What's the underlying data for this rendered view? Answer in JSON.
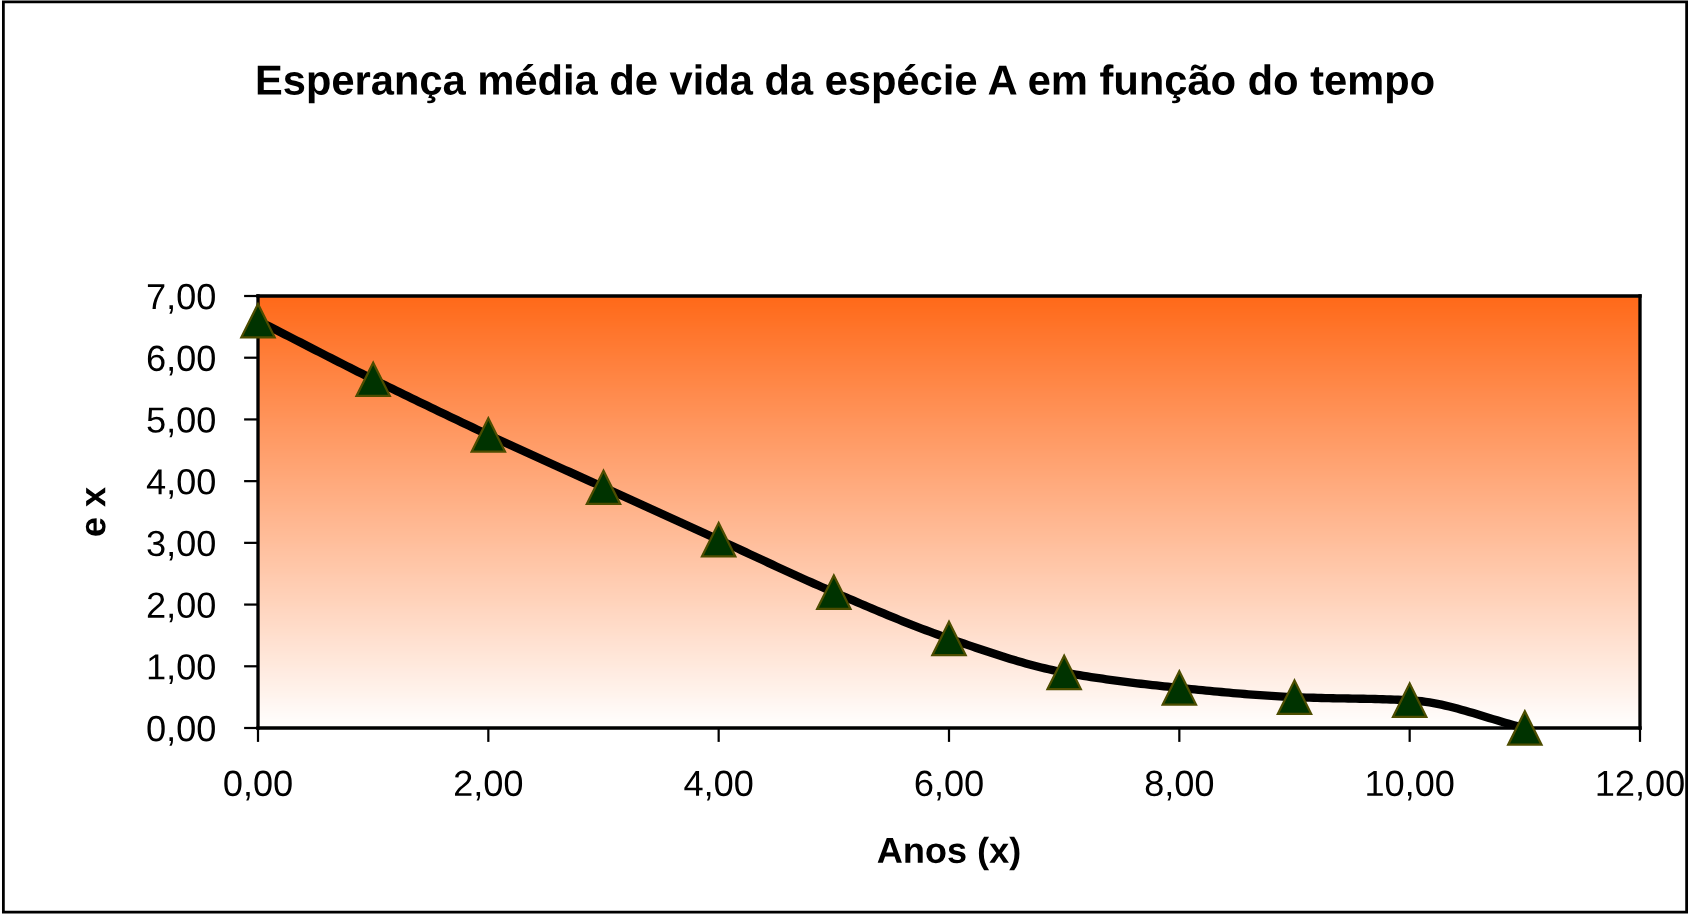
{
  "chart_data": {
    "type": "line",
    "title": "Esperança média de vida da espécie A em função do tempo",
    "xlabel": "Anos (x)",
    "ylabel": "e x",
    "series": [
      {
        "color": "#000000",
        "x": [
          0,
          1,
          2,
          3,
          4,
          5,
          6,
          7,
          8,
          9,
          10,
          11
        ],
        "values": [
          6.6,
          5.65,
          4.75,
          3.9,
          3.05,
          2.2,
          1.45,
          0.9,
          0.65,
          0.5,
          0.45,
          0.0
        ]
      }
    ],
    "xlim": [
      0,
      12
    ],
    "ylim": [
      0,
      7
    ],
    "xticks": [
      {
        "value": 0,
        "label": "0,00"
      },
      {
        "value": 2,
        "label": "2,00"
      },
      {
        "value": 4,
        "label": "4,00"
      },
      {
        "value": 6,
        "label": "6,00"
      },
      {
        "value": 8,
        "label": "8,00"
      },
      {
        "value": 10,
        "label": "10,00"
      },
      {
        "value": 12,
        "label": "12,00"
      }
    ],
    "yticks": [
      {
        "value": 0,
        "label": "0,00"
      },
      {
        "value": 1,
        "label": "1,00"
      },
      {
        "value": 2,
        "label": "2,00"
      },
      {
        "value": 3,
        "label": "3,00"
      },
      {
        "value": 4,
        "label": "4,00"
      },
      {
        "value": 5,
        "label": "5,00"
      },
      {
        "value": 6,
        "label": "6,00"
      },
      {
        "value": 7,
        "label": "7,00"
      }
    ],
    "marker": "triangle",
    "line_style": "solid",
    "grid": false,
    "legend": false
  }
}
